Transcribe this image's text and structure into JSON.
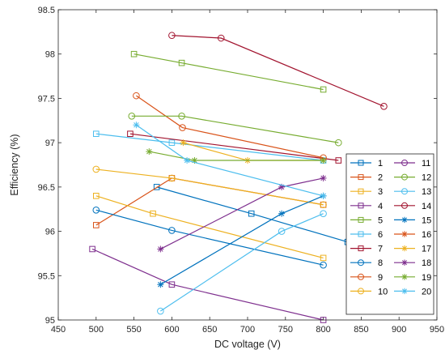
{
  "chart_data": {
    "type": "line",
    "title": "",
    "xlabel": "DC voltage (V)",
    "ylabel": "Efficiency (%)",
    "xlim": [
      450,
      950
    ],
    "ylim": [
      95,
      98.5
    ],
    "xticks": [
      450,
      500,
      550,
      600,
      650,
      700,
      750,
      800,
      850,
      900,
      950
    ],
    "yticks": [
      95,
      95.5,
      96,
      96.5,
      97,
      97.5,
      98,
      98.5
    ],
    "xtick_labels": [
      "450",
      "500",
      "550",
      "600",
      "650",
      "700",
      "750",
      "800",
      "850",
      "900",
      "950"
    ],
    "ytick_labels": [
      "95",
      "95.5",
      "96",
      "96.5",
      "97",
      "97.5",
      "98",
      "98.5"
    ],
    "grid": false,
    "legend_position": "right",
    "series": [
      {
        "name": "1",
        "color": "#0072BD",
        "marker": "square",
        "x": [
          580,
          705,
          832
        ],
        "y": [
          96.5,
          96.2,
          95.88
        ]
      },
      {
        "name": "2",
        "color": "#D95319",
        "marker": "square",
        "x": [
          500,
          600,
          800
        ],
        "y": [
          96.07,
          96.6,
          96.3
        ]
      },
      {
        "name": "3",
        "color": "#EDB120",
        "marker": "square",
        "x": [
          500,
          575,
          800
        ],
        "y": [
          96.4,
          96.2,
          95.7
        ]
      },
      {
        "name": "4",
        "color": "#7E2F8E",
        "marker": "square",
        "x": [
          495,
          600,
          800
        ],
        "y": [
          95.8,
          95.4,
          95.0
        ]
      },
      {
        "name": "5",
        "color": "#77AC30",
        "marker": "square",
        "x": [
          550,
          613,
          800
        ],
        "y": [
          98.0,
          97.9,
          97.6
        ]
      },
      {
        "name": "6",
        "color": "#4DBEEE",
        "marker": "square",
        "x": [
          500,
          600,
          800
        ],
        "y": [
          97.1,
          97.0,
          96.8
        ]
      },
      {
        "name": "7",
        "color": "#A2142F",
        "marker": "square",
        "x": [
          545,
          820
        ],
        "y": [
          97.1,
          96.8
        ]
      },
      {
        "name": "8",
        "color": "#0072BD",
        "marker": "circle",
        "x": [
          500,
          600,
          800
        ],
        "y": [
          96.24,
          96.01,
          95.62
        ]
      },
      {
        "name": "9",
        "color": "#D95319",
        "marker": "circle",
        "x": [
          553,
          614,
          800
        ],
        "y": [
          97.53,
          97.17,
          96.83
        ]
      },
      {
        "name": "10",
        "color": "#EDB120",
        "marker": "circle",
        "x": [
          500,
          600,
          800
        ],
        "y": [
          96.7,
          96.6,
          96.3
        ]
      },
      {
        "name": "11",
        "color": "#7E2F8E",
        "marker": "circle",
        "x": [],
        "y": []
      },
      {
        "name": "12",
        "color": "#77AC30",
        "marker": "circle",
        "x": [
          547,
          613,
          820
        ],
        "y": [
          97.3,
          97.3,
          97.0
        ]
      },
      {
        "name": "13",
        "color": "#4DBEEE",
        "marker": "circle",
        "x": [
          585,
          745,
          800
        ],
        "y": [
          95.1,
          96.0,
          96.2
        ]
      },
      {
        "name": "14",
        "color": "#A2142F",
        "marker": "circle",
        "x": [
          600,
          665,
          880
        ],
        "y": [
          98.21,
          98.18,
          97.41
        ]
      },
      {
        "name": "15",
        "color": "#0072BD",
        "marker": "asterisk",
        "x": [
          585,
          745,
          800
        ],
        "y": [
          95.4,
          96.2,
          96.4
        ]
      },
      {
        "name": "16",
        "color": "#D95319",
        "marker": "asterisk",
        "x": [],
        "y": []
      },
      {
        "name": "17",
        "color": "#EDB120",
        "marker": "asterisk",
        "x": [
          615,
          700,
          800
        ],
        "y": [
          97.0,
          96.8,
          96.8
        ]
      },
      {
        "name": "18",
        "color": "#7E2F8E",
        "marker": "asterisk",
        "x": [
          585,
          745,
          800
        ],
        "y": [
          95.8,
          96.5,
          96.6
        ]
      },
      {
        "name": "19",
        "color": "#77AC30",
        "marker": "asterisk",
        "x": [
          570,
          630,
          800
        ],
        "y": [
          96.9,
          96.8,
          96.8
        ]
      },
      {
        "name": "20",
        "color": "#4DBEEE",
        "marker": "asterisk",
        "x": [
          553,
          620,
          800
        ],
        "y": [
          97.2,
          96.8,
          96.4
        ]
      }
    ]
  }
}
